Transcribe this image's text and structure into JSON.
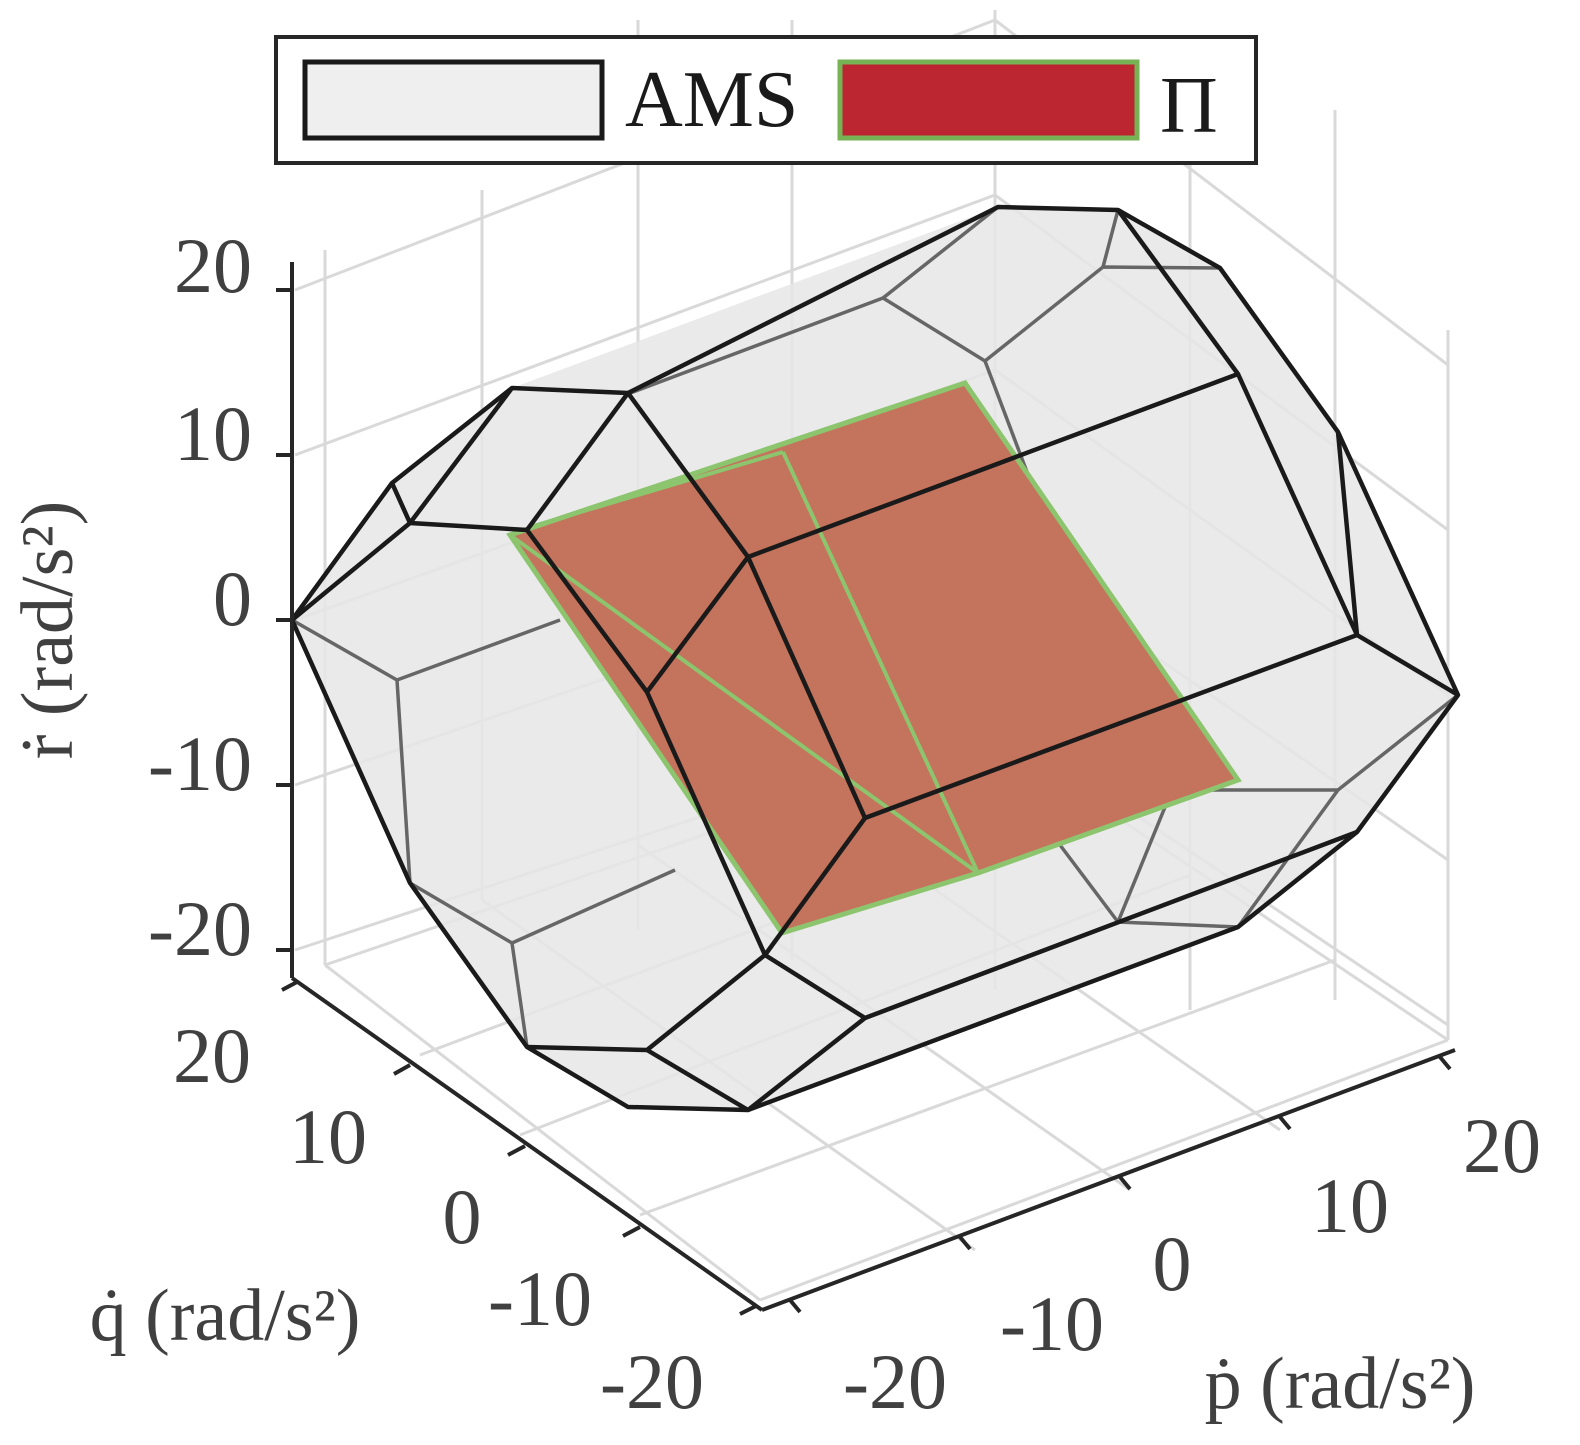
{
  "chart_data": {
    "type": "3d-polytope",
    "title": "",
    "axes": {
      "x": {
        "label": "ṗ (rad/s²)",
        "range": [
          -20,
          20
        ],
        "ticks": [
          "-20",
          "-10",
          "0",
          "10",
          "20"
        ]
      },
      "y": {
        "label": "q̇ (rad/s²)",
        "range": [
          -20,
          20
        ],
        "ticks": [
          "-20",
          "-10",
          "0",
          "10",
          "20"
        ]
      },
      "z": {
        "label": "ṙ (rad/s²)",
        "range": [
          -20,
          20
        ],
        "ticks": [
          "-20",
          "-10",
          "0",
          "10",
          "20"
        ]
      }
    },
    "grid": true,
    "legend": {
      "placement": "top",
      "entries": [
        {
          "name": "AMS",
          "fill": "#efefef",
          "edge": "#1a1a1a"
        },
        {
          "name": "Π",
          "fill": "#bb2630",
          "edge": "#77b255"
        }
      ]
    },
    "series": [
      {
        "name": "AMS",
        "kind": "polytope-wireframe",
        "fill": "#e8e8e8",
        "edge": "#1a1a1a"
      },
      {
        "name": "Π",
        "kind": "planar-polygon",
        "fill": "#c4735c",
        "edge": "#8cc56e"
      }
    ]
  }
}
